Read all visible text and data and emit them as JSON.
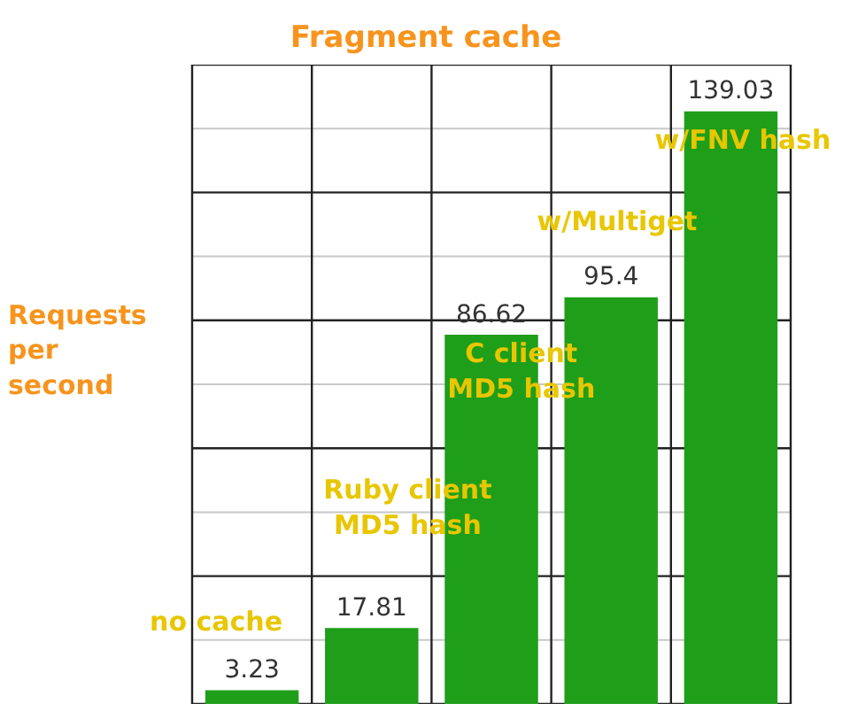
{
  "chart_data": {
    "type": "bar",
    "title": "Fragment cache",
    "ylabel": "Requests\nper\nsecond",
    "categories": [
      "no cache",
      "Ruby client\nMD5 hash",
      "C client\nMD5 hash",
      "w/Multiget",
      "w/FNV hash"
    ],
    "values": [
      3.23,
      17.81,
      86.62,
      95.4,
      139.03
    ],
    "value_labels": [
      "3.23",
      "17.81",
      "86.62",
      "95.4",
      "139.03"
    ],
    "color": "#1f9e1a",
    "ylim": [
      0,
      150
    ],
    "yticks": [
      {
        "value": 0,
        "label": null
      },
      {
        "value": 15,
        "label": null
      },
      {
        "value": 30,
        "label": null
      },
      {
        "value": 45,
        "label": null
      },
      {
        "value": 60,
        "label": null
      },
      {
        "value": 75,
        "label": null
      },
      {
        "value": 90,
        "label": null
      },
      {
        "value": 105,
        "label": null
      },
      {
        "value": 120,
        "label": null
      },
      {
        "value": 135,
        "label": null
      },
      {
        "value": 150,
        "label": null
      }
    ],
    "grid": true
  }
}
